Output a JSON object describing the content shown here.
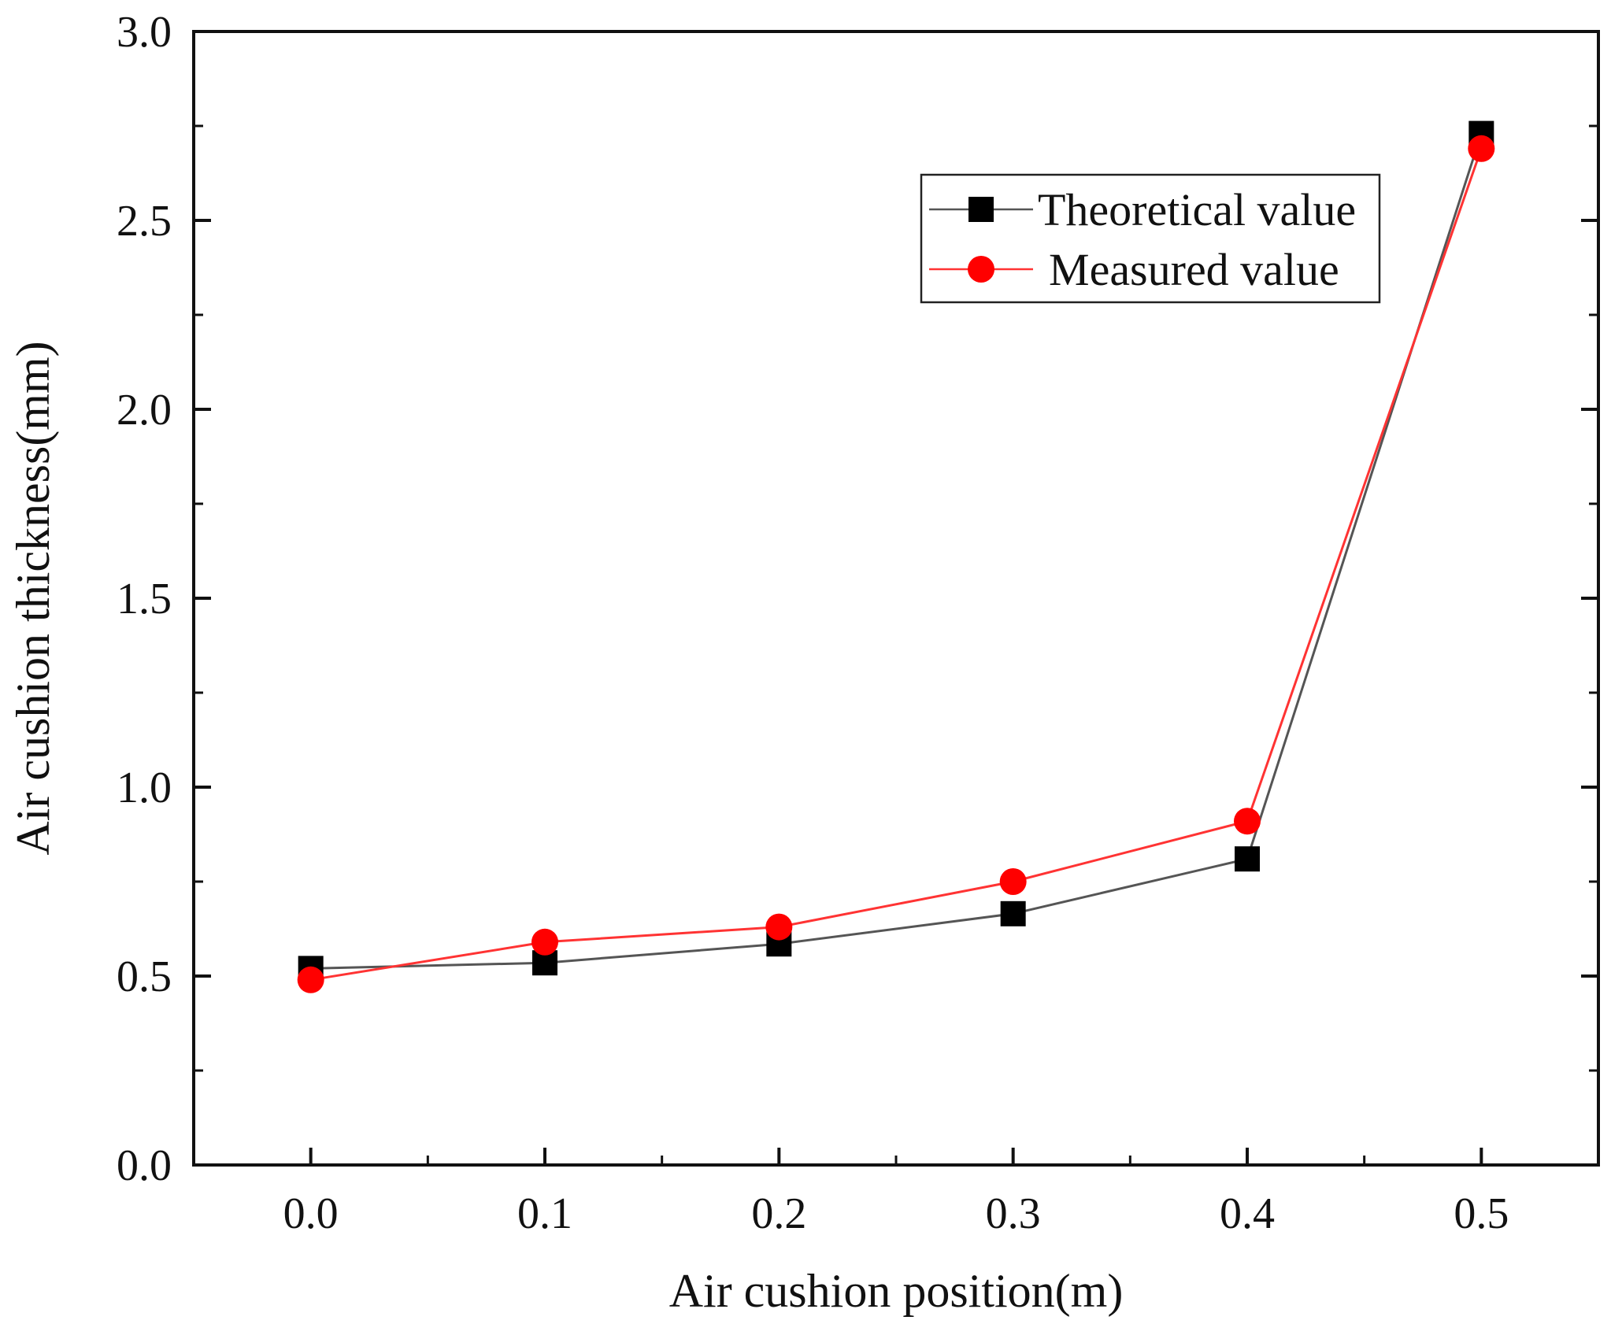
{
  "chart_data": {
    "type": "line",
    "title": "",
    "xlabel": "Air cushion position(m)",
    "ylabel": "Air cushion thickness(mm)",
    "xlim": [
      -0.05,
      0.55
    ],
    "ylim": [
      0.0,
      3.0
    ],
    "x_ticks": [
      0.0,
      0.1,
      0.2,
      0.3,
      0.4,
      0.5
    ],
    "x_tick_labels": [
      "0.0",
      "0.1",
      "0.2",
      "0.3",
      "0.4",
      "0.5"
    ],
    "y_ticks": [
      0.0,
      0.5,
      1.0,
      1.5,
      2.0,
      2.5,
      3.0
    ],
    "y_tick_labels": [
      "0.0",
      "0.5",
      "1.0",
      "1.5",
      "2.0",
      "2.5",
      "3.0"
    ],
    "grid": false,
    "legend_position": "top-right",
    "series": [
      {
        "name": "Theoretical value",
        "color": "#555555",
        "marker": "square",
        "marker_color": "#000000",
        "x": [
          0.0,
          0.1,
          0.2,
          0.3,
          0.4,
          0.5
        ],
        "y": [
          0.52,
          0.535,
          0.585,
          0.665,
          0.81,
          2.73
        ]
      },
      {
        "name": "Measured value",
        "color": "#ff3333",
        "marker": "circle",
        "marker_color": "#ff0000",
        "x": [
          0.0,
          0.1,
          0.2,
          0.3,
          0.4,
          0.5
        ],
        "y": [
          0.49,
          0.59,
          0.63,
          0.75,
          0.91,
          2.69
        ]
      }
    ]
  }
}
